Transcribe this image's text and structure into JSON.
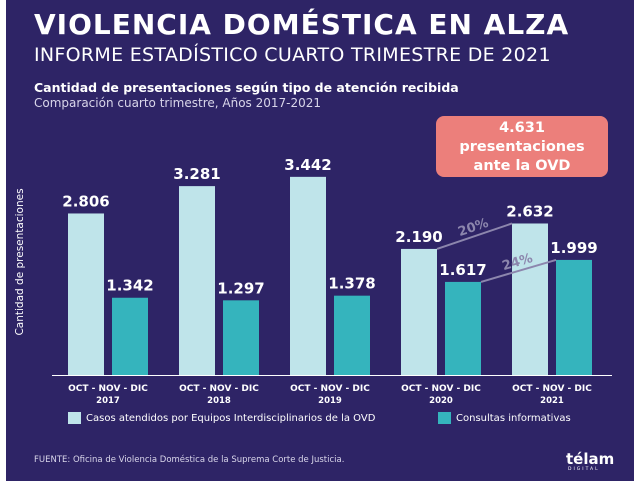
{
  "title": "VIOLENCIA DOMÉSTICA EN ALZA",
  "subtitle": "INFORME ESTADÍSTICO CUARTO TRIMESTRE DE 2021",
  "chart_title": "Cantidad de presentaciones según tipo de atención recibida",
  "chart_subtitle": "Comparación cuarto trimestre, Años 2017-2021",
  "callout": {
    "line1": "4.631",
    "line2": "presentaciones",
    "line3": "ante la OVD"
  },
  "source": "FUENTE: Oficina de Violencia Doméstica de la Suprema Corte de Justicia.",
  "logo": "télam",
  "logo_sub": "DIGITAL",
  "colors": {
    "background": "#2e2466",
    "series1": "#bfe4ea",
    "series2": "#35b4bd",
    "callout": "#ec7f7b",
    "growth": "#8c86ad"
  },
  "chart_data": {
    "type": "bar",
    "ylabel": "Cantidad de presentaciones",
    "categories": [
      {
        "period": "OCT - NOV - DIC",
        "year": "2017"
      },
      {
        "period": "OCT - NOV - DIC",
        "year": "2018"
      },
      {
        "period": "OCT - NOV - DIC",
        "year": "2019"
      },
      {
        "period": "OCT - NOV - DIC",
        "year": "2020"
      },
      {
        "period": "OCT - NOV - DIC",
        "year": "2021"
      }
    ],
    "series": [
      {
        "name": "Casos atendidos por Equipos Interdisciplinarios de la OVD",
        "values": [
          2806,
          3281,
          3442,
          2190,
          2632
        ],
        "labels": [
          "2.806",
          "3.281",
          "3.442",
          "2.190",
          "2.632"
        ]
      },
      {
        "name": "Consultas informativas",
        "values": [
          1342,
          1297,
          1378,
          1617,
          1999
        ],
        "labels": [
          "1.342",
          "1.297",
          "1.378",
          "1.617",
          "1.999"
        ]
      }
    ],
    "growth_annotations": [
      {
        "series": 0,
        "from_year": "2020",
        "to_year": "2021",
        "label": "20%"
      },
      {
        "series": 1,
        "from_year": "2020",
        "to_year": "2021",
        "label": "24%"
      }
    ],
    "ylim": [
      0,
      3700
    ],
    "grid": false,
    "legend_position": "bottom"
  }
}
